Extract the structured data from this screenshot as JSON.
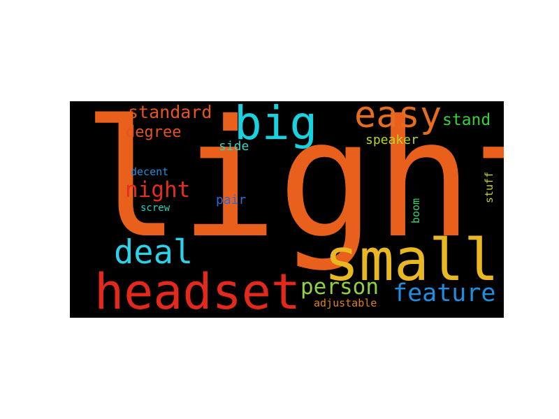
{
  "wordcloud": {
    "words": [
      {
        "text": "light",
        "color": "#e8601c"
      },
      {
        "text": "small",
        "color": "#e8b722"
      },
      {
        "text": "headset",
        "color": "#e2291c"
      },
      {
        "text": "big",
        "color": "#18d2e0"
      },
      {
        "text": "easy",
        "color": "#e56d1d"
      },
      {
        "text": "deal",
        "color": "#2bd3ea"
      },
      {
        "text": "person",
        "color": "#8fd23a"
      },
      {
        "text": "feature",
        "color": "#1c8fe2"
      },
      {
        "text": "night",
        "color": "#e43018"
      },
      {
        "text": "standard",
        "color": "#e5561b"
      },
      {
        "text": "degree",
        "color": "#e4541c"
      },
      {
        "text": "stand",
        "color": "#38d13a"
      },
      {
        "text": "side",
        "color": "#35d3c5"
      },
      {
        "text": "speaker",
        "color": "#b8d62a"
      },
      {
        "text": "decent",
        "color": "#1c8fe2"
      },
      {
        "text": "pair",
        "color": "#2a6bd9"
      },
      {
        "text": "screw",
        "color": "#2dcfbf"
      },
      {
        "text": "stuff",
        "color": "#c9d22a"
      },
      {
        "text": "boom",
        "color": "#3bd36a"
      },
      {
        "text": "adjustable",
        "color": "#e0801a"
      }
    ]
  }
}
